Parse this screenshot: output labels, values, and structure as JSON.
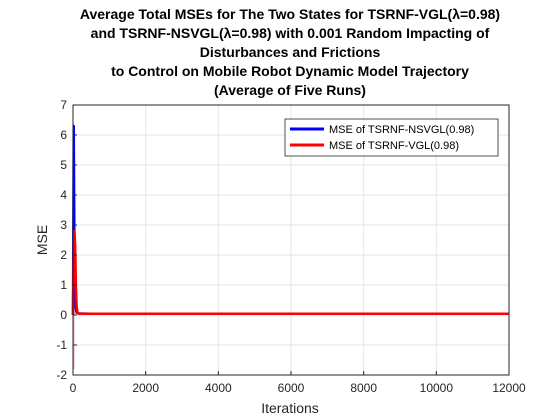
{
  "chart_data": {
    "type": "line",
    "title_lines": [
      "Average Total MSEs for The Two States for TSRNF-VGL(λ=0.98)",
      "and TSRNF-NSVGL(λ=0.98) with 0.001 Random Impacting of",
      "Disturbances and Frictions",
      "to Control on Mobile Robot Dynamic Model Trajectory",
      "(Average of Five Runs)"
    ],
    "xlabel": "Iterations",
    "ylabel": "MSE",
    "xlim": [
      0,
      12000
    ],
    "ylim": [
      -2,
      7
    ],
    "xticks": [
      0,
      2000,
      4000,
      6000,
      8000,
      10000,
      12000
    ],
    "yticks": [
      -2,
      -1,
      0,
      1,
      2,
      3,
      4,
      5,
      6,
      7
    ],
    "grid": true,
    "legend_position": "top-right",
    "series": [
      {
        "name": "MSE of TSRNF-NSVGL(0.98)",
        "color": "#0000ff",
        "x": [
          0,
          20,
          40,
          60,
          80,
          100,
          150,
          200,
          500,
          1000,
          12000
        ],
        "y": [
          0,
          6.3,
          2.0,
          0.6,
          0.2,
          0.08,
          0.05,
          0.05,
          0.04,
          0.04,
          0.04
        ]
      },
      {
        "name": "MSE of TSRNF-VGL(0.98)",
        "color": "#ff0000",
        "x": [
          0,
          20,
          40,
          60,
          80,
          100,
          120,
          150,
          200,
          500,
          1000,
          12000
        ],
        "y": [
          0,
          2.7,
          2.8,
          2.3,
          1.0,
          0.3,
          0.1,
          0.05,
          0.04,
          0.04,
          0.04,
          0.04
        ]
      }
    ],
    "transient_band": {
      "color": "#f4a0a0",
      "x": [
        0,
        40
      ],
      "y": [
        -1.8,
        5.8
      ]
    }
  }
}
